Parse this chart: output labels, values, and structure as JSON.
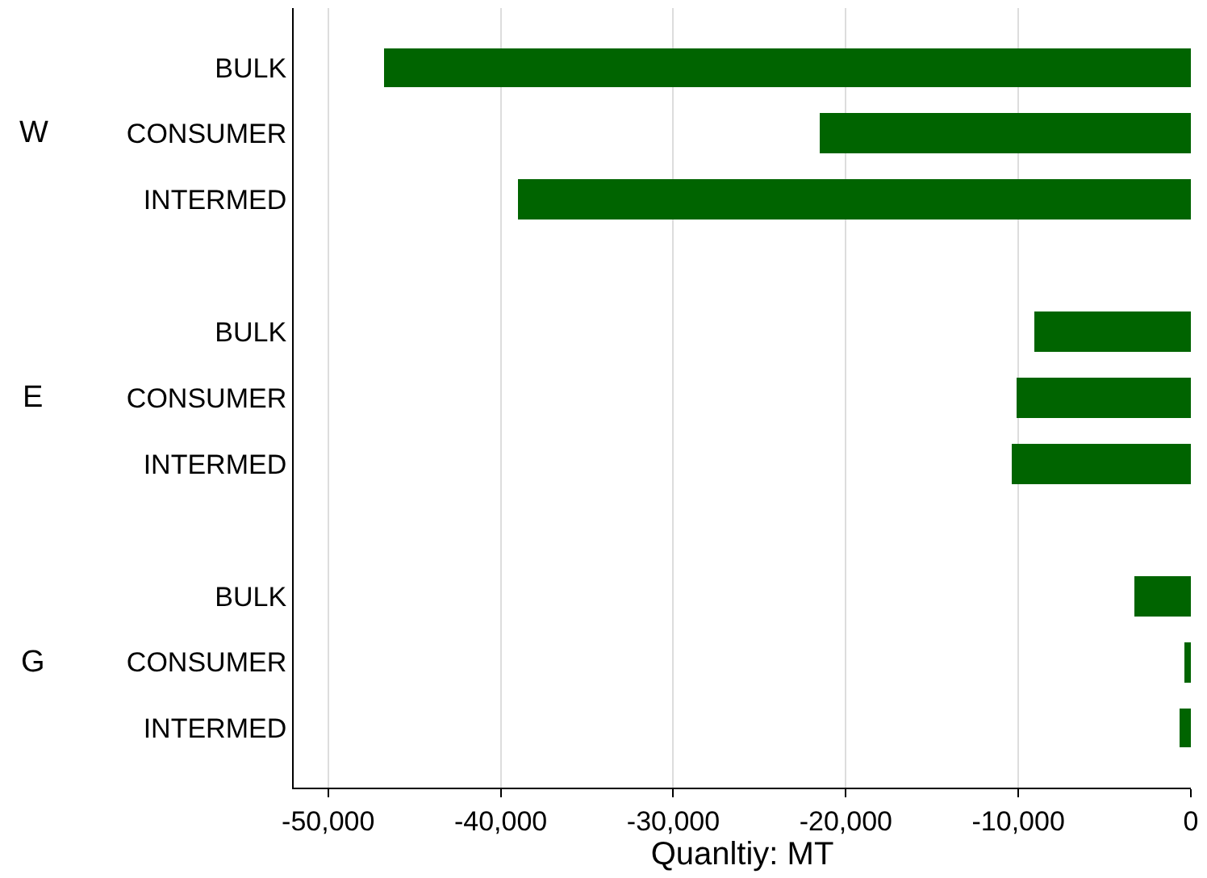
{
  "chart_data": {
    "type": "bar",
    "orientation": "horizontal",
    "xlabel": "Quanltiy: MT",
    "categories": [
      "BULK",
      "CONSUMER",
      "INTERMED",
      null,
      "BULK",
      "CONSUMER",
      "INTERMED",
      null,
      "BULK",
      "CONSUMER",
      "INTERMED"
    ],
    "values": [
      -46800,
      -21500,
      -39000,
      null,
      -9100,
      -10100,
      -10400,
      null,
      -3300,
      -400,
      -700
    ],
    "color": "#006400",
    "annotations": [
      "W",
      "E",
      "G"
    ],
    "xlim": [
      -52000,
      0
    ],
    "xticks": [
      {
        "value": -50000,
        "label": "-50,000"
      },
      {
        "value": -40000,
        "label": "-40,000"
      },
      {
        "value": -30000,
        "label": "-30,000"
      },
      {
        "value": -20000,
        "label": "-20,000"
      },
      {
        "value": -10000,
        "label": "-10,000"
      },
      0
    ],
    "grid": "x",
    "legend": false
  }
}
